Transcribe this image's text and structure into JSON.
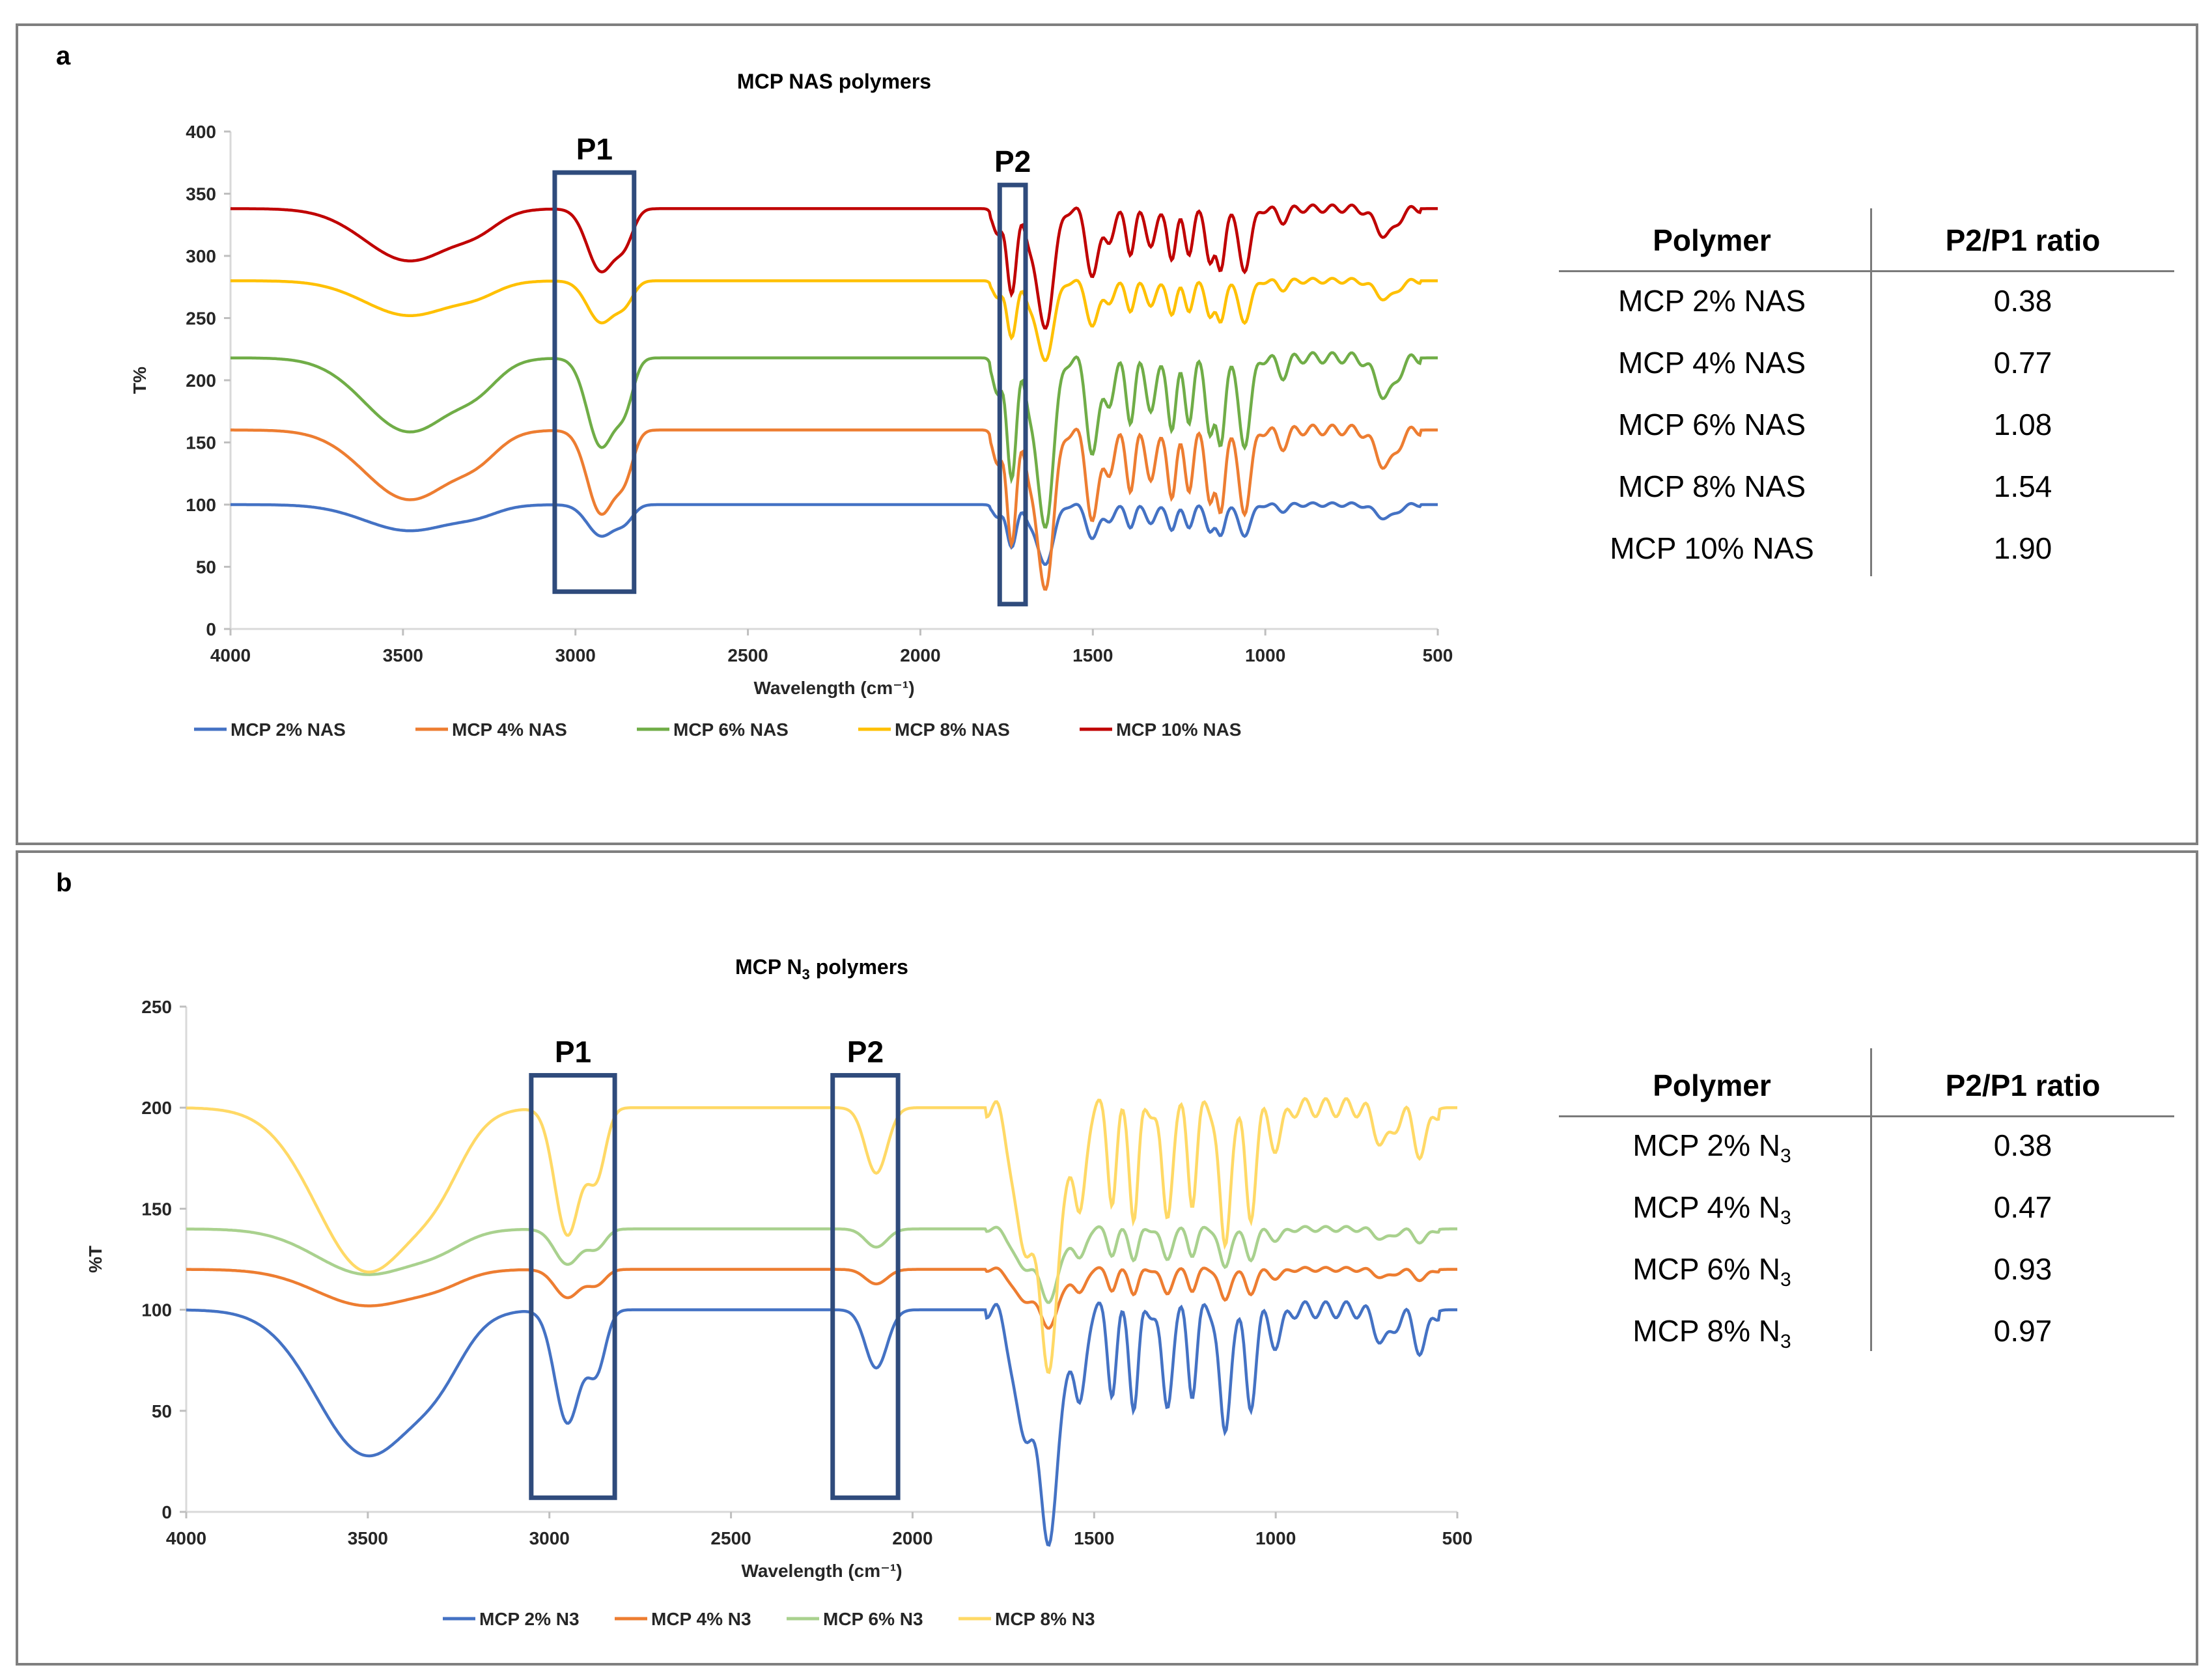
{
  "panels": {
    "a": {
      "label": "a",
      "table": {
        "headers": [
          "Polymer",
          "P2/P1 ratio"
        ],
        "rows": [
          {
            "polymer": "MCP 2% NAS",
            "ratio": "0.38"
          },
          {
            "polymer": "MCP 4% NAS",
            "ratio": "0.77"
          },
          {
            "polymer": "MCP 6% NAS",
            "ratio": "1.08"
          },
          {
            "polymer": "MCP 8% NAS",
            "ratio": "1.54"
          },
          {
            "polymer": "MCP 10% NAS",
            "ratio": "1.90"
          }
        ]
      }
    },
    "b": {
      "label": "b",
      "table": {
        "headers": [
          "Polymer",
          "P2/P1 ratio"
        ],
        "rows": [
          {
            "polymer": "MCP 2% N",
            "sub": "3",
            "ratio": "0.38"
          },
          {
            "polymer": "MCP 4% N",
            "sub": "3",
            "ratio": "0.47"
          },
          {
            "polymer": "MCP 6% N",
            "sub": "3",
            "ratio": "0.93"
          },
          {
            "polymer": "MCP 8% N",
            "sub": "3",
            "ratio": "0.97"
          }
        ]
      }
    }
  },
  "chart_data": [
    {
      "type": "line",
      "title": "MCP NAS polymers",
      "xlabel": "Wavelength (cm⁻¹)",
      "ylabel": "T%",
      "xlim": [
        4000,
        500
      ],
      "ylim": [
        0,
        400
      ],
      "xticks": [
        4000,
        3500,
        3000,
        2500,
        2000,
        1500,
        1000,
        500
      ],
      "yticks": [
        0,
        50,
        100,
        150,
        200,
        250,
        300,
        350,
        400
      ],
      "annotations": [
        {
          "label": "P1",
          "x_range": [
            3060,
            2830
          ],
          "y_range": [
            30,
            367
          ]
        },
        {
          "label": "P2",
          "x_range": [
            1770,
            1695
          ],
          "y_range": [
            20,
            357
          ]
        }
      ],
      "series": [
        {
          "name": "MCP 2%  NAS",
          "color": "#4472C4",
          "baseline": 100,
          "amp": 0.6
        },
        {
          "name": "MCP 4% NAS",
          "color": "#ED7D31",
          "baseline": 160,
          "amp": 1.6
        },
        {
          "name": "MCP 6% NAS",
          "color": "#70AD47",
          "baseline": 218,
          "amp": 1.7
        },
        {
          "name": "MCP 8% NAS",
          "color": "#FFC000",
          "baseline": 280,
          "amp": 0.8
        },
        {
          "name": "MCP 10% NAS",
          "color": "#C00000",
          "baseline": 338,
          "amp": 1.2
        }
      ],
      "legend": "bottom"
    },
    {
      "type": "line",
      "title": "MCP N",
      "title_sub": "3",
      "title_suffix": " polymers",
      "xlabel": "Wavelength (cm⁻¹)",
      "ylabel": "%T",
      "xlim": [
        4000,
        500
      ],
      "ylim": [
        0,
        250
      ],
      "xticks": [
        4000,
        3500,
        3000,
        2500,
        2000,
        1500,
        1000,
        500
      ],
      "yticks": [
        0,
        50,
        100,
        150,
        200,
        250
      ],
      "annotations": [
        {
          "label": "P1",
          "x_range": [
            3050,
            2820
          ],
          "y_range": [
            7,
            216
          ]
        },
        {
          "label": "P2",
          "x_range": [
            2220,
            2040
          ],
          "y_range": [
            7,
            216
          ]
        }
      ],
      "series": [
        {
          "name": "MCP 2% N3",
          "color": "#4472C4",
          "baseline": 100,
          "amp": 1.6
        },
        {
          "name": "MCP 4% N3",
          "color": "#ED7D31",
          "baseline": 120,
          "amp": 0.4
        },
        {
          "name": "MCP 6% N3",
          "color": "#A9D18E",
          "baseline": 140,
          "amp": 0.5
        },
        {
          "name": "MCP 8% N3",
          "color": "#FFD966",
          "baseline": 200,
          "amp": 1.8
        }
      ],
      "legend": "bottom"
    }
  ]
}
